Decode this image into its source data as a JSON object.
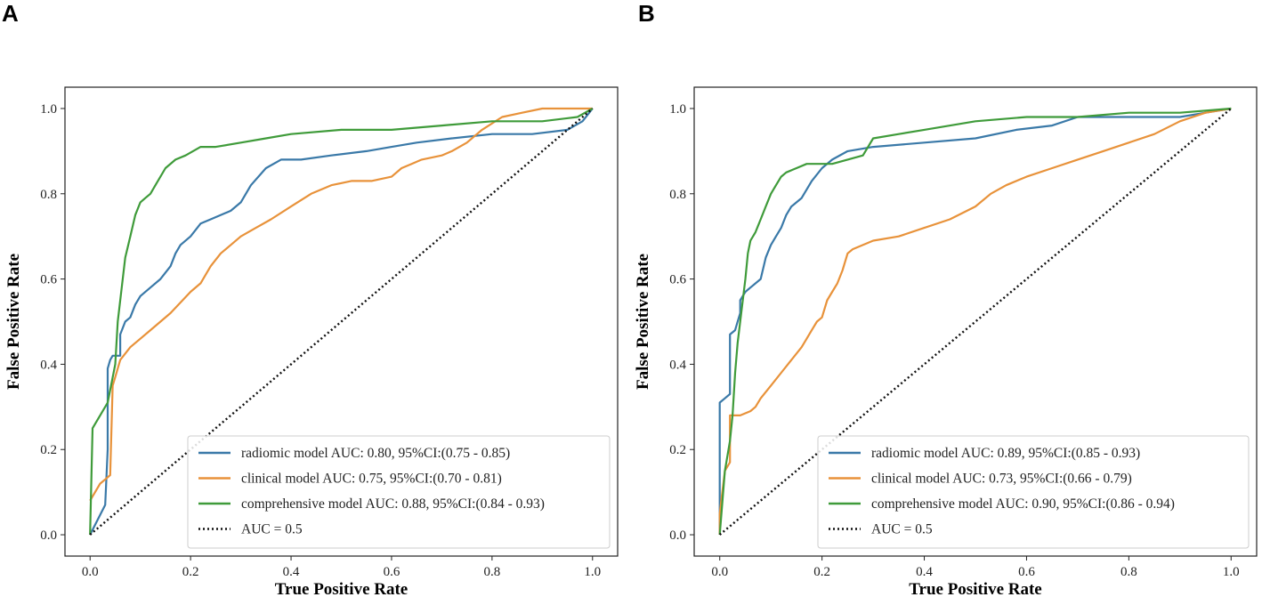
{
  "chart_data": [
    {
      "type": "line",
      "panel": "A",
      "xlabel": "True Positive Rate",
      "ylabel": "False Positive Rate",
      "xlim": [
        -0.05,
        1.05
      ],
      "ylim": [
        -0.05,
        1.05
      ],
      "xticks": [
        "0.0",
        "0.2",
        "0.4",
        "0.6",
        "0.8",
        "1.0"
      ],
      "yticks": [
        "0.0",
        "0.2",
        "0.4",
        "0.6",
        "0.8",
        "1.0"
      ],
      "legend_position": "lower-right",
      "series": [
        {
          "name": "radiomic model AUC: 0.80, 95%CI:(0.75 - 0.85)",
          "color": "#3a79a8",
          "style": "solid",
          "x": [
            0,
            0.03,
            0.035,
            0.035,
            0.04,
            0.045,
            0.06,
            0.06,
            0.07,
            0.08,
            0.09,
            0.1,
            0.12,
            0.14,
            0.16,
            0.17,
            0.18,
            0.2,
            0.22,
            0.24,
            0.28,
            0.3,
            0.32,
            0.35,
            0.38,
            0.42,
            0.48,
            0.55,
            0.6,
            0.65,
            0.72,
            0.8,
            0.88,
            0.95,
            0.98,
            1.0
          ],
          "y": [
            0,
            0.07,
            0.2,
            0.39,
            0.41,
            0.42,
            0.42,
            0.47,
            0.5,
            0.51,
            0.54,
            0.56,
            0.58,
            0.6,
            0.63,
            0.66,
            0.68,
            0.7,
            0.73,
            0.74,
            0.76,
            0.78,
            0.82,
            0.86,
            0.88,
            0.88,
            0.89,
            0.9,
            0.91,
            0.92,
            0.93,
            0.94,
            0.94,
            0.95,
            0.97,
            1.0
          ]
        },
        {
          "name": "clinical model AUC: 0.75, 95%CI:(0.70 - 0.81)",
          "color": "#e8923a",
          "style": "solid",
          "x": [
            0,
            0.01,
            0.02,
            0.03,
            0.04,
            0.045,
            0.05,
            0.06,
            0.08,
            0.1,
            0.12,
            0.14,
            0.16,
            0.2,
            0.22,
            0.24,
            0.26,
            0.28,
            0.3,
            0.33,
            0.36,
            0.4,
            0.44,
            0.48,
            0.52,
            0.56,
            0.6,
            0.62,
            0.64,
            0.66,
            0.7,
            0.72,
            0.75,
            0.78,
            0.82,
            0.86,
            0.9,
            0.95,
            1.0
          ],
          "y": [
            0.08,
            0.1,
            0.12,
            0.13,
            0.14,
            0.35,
            0.37,
            0.41,
            0.44,
            0.46,
            0.48,
            0.5,
            0.52,
            0.57,
            0.59,
            0.63,
            0.66,
            0.68,
            0.7,
            0.72,
            0.74,
            0.77,
            0.8,
            0.82,
            0.83,
            0.83,
            0.84,
            0.86,
            0.87,
            0.88,
            0.89,
            0.9,
            0.92,
            0.95,
            0.98,
            0.99,
            1.0,
            1.0,
            1.0
          ]
        },
        {
          "name": "comprehensive model AUC: 0.88, 95%CI:(0.84 - 0.93)",
          "color": "#3f9b3a",
          "style": "solid",
          "x": [
            0,
            0.005,
            0.02,
            0.035,
            0.05,
            0.055,
            0.06,
            0.07,
            0.08,
            0.09,
            0.1,
            0.11,
            0.12,
            0.13,
            0.15,
            0.17,
            0.19,
            0.22,
            0.25,
            0.3,
            0.35,
            0.4,
            0.5,
            0.6,
            0.7,
            0.8,
            0.9,
            0.97,
            1.0
          ],
          "y": [
            0,
            0.25,
            0.28,
            0.31,
            0.4,
            0.5,
            0.55,
            0.65,
            0.7,
            0.75,
            0.78,
            0.79,
            0.8,
            0.82,
            0.86,
            0.88,
            0.89,
            0.91,
            0.91,
            0.92,
            0.93,
            0.94,
            0.95,
            0.95,
            0.96,
            0.97,
            0.97,
            0.98,
            1.0
          ]
        },
        {
          "name": "AUC = 0.5",
          "color": "#111111",
          "style": "dotted",
          "x": [
            0,
            1
          ],
          "y": [
            0,
            1
          ]
        }
      ]
    },
    {
      "type": "line",
      "panel": "B",
      "xlabel": "True Positive Rate",
      "ylabel": "False Positive Rate",
      "xlim": [
        -0.05,
        1.05
      ],
      "ylim": [
        -0.05,
        1.05
      ],
      "xticks": [
        "0.0",
        "0.2",
        "0.4",
        "0.6",
        "0.8",
        "1.0"
      ],
      "yticks": [
        "0.0",
        "0.2",
        "0.4",
        "0.6",
        "0.8",
        "1.0"
      ],
      "legend_position": "lower-right",
      "series": [
        {
          "name": "radiomic model AUC: 0.89, 95%CI:(0.85 - 0.93)",
          "color": "#3a79a8",
          "style": "solid",
          "x": [
            0,
            0.0,
            0.01,
            0.02,
            0.02,
            0.03,
            0.035,
            0.04,
            0.04,
            0.05,
            0.06,
            0.08,
            0.09,
            0.1,
            0.11,
            0.12,
            0.13,
            0.14,
            0.16,
            0.18,
            0.2,
            0.22,
            0.25,
            0.3,
            0.4,
            0.5,
            0.58,
            0.65,
            0.7,
            0.8,
            0.9,
            0.95,
            1.0
          ],
          "y": [
            0,
            0.31,
            0.32,
            0.33,
            0.47,
            0.48,
            0.5,
            0.52,
            0.55,
            0.57,
            0.58,
            0.6,
            0.65,
            0.68,
            0.7,
            0.72,
            0.75,
            0.77,
            0.79,
            0.83,
            0.86,
            0.88,
            0.9,
            0.91,
            0.92,
            0.93,
            0.95,
            0.96,
            0.98,
            0.98,
            0.98,
            0.99,
            1.0
          ]
        },
        {
          "name": "clinical model AUC: 0.73, 95%CI:(0.66 - 0.79)",
          "color": "#e8923a",
          "style": "solid",
          "x": [
            0,
            0.0,
            0.01,
            0.02,
            0.02,
            0.04,
            0.06,
            0.07,
            0.08,
            0.1,
            0.12,
            0.14,
            0.16,
            0.17,
            0.18,
            0.19,
            0.2,
            0.21,
            0.22,
            0.23,
            0.24,
            0.25,
            0.26,
            0.3,
            0.35,
            0.4,
            0.45,
            0.5,
            0.53,
            0.56,
            0.6,
            0.65,
            0.7,
            0.75,
            0.8,
            0.85,
            0.9,
            0.95,
            1.0
          ],
          "y": [
            0,
            0.05,
            0.15,
            0.17,
            0.28,
            0.28,
            0.29,
            0.3,
            0.32,
            0.35,
            0.38,
            0.41,
            0.44,
            0.46,
            0.48,
            0.5,
            0.51,
            0.55,
            0.57,
            0.59,
            0.62,
            0.66,
            0.67,
            0.69,
            0.7,
            0.72,
            0.74,
            0.77,
            0.8,
            0.82,
            0.84,
            0.86,
            0.88,
            0.9,
            0.92,
            0.94,
            0.97,
            0.99,
            1.0
          ]
        },
        {
          "name": "comprehensive model AUC: 0.90, 95%CI:(0.86 - 0.94)",
          "color": "#3f9b3a",
          "style": "solid",
          "x": [
            0,
            0.01,
            0.02,
            0.025,
            0.03,
            0.035,
            0.04,
            0.05,
            0.055,
            0.06,
            0.07,
            0.08,
            0.09,
            0.1,
            0.11,
            0.12,
            0.13,
            0.15,
            0.17,
            0.19,
            0.22,
            0.25,
            0.28,
            0.3,
            0.35,
            0.4,
            0.5,
            0.6,
            0.7,
            0.8,
            0.9,
            1.0
          ],
          "y": [
            0,
            0.15,
            0.22,
            0.28,
            0.38,
            0.45,
            0.5,
            0.6,
            0.66,
            0.69,
            0.71,
            0.74,
            0.77,
            0.8,
            0.82,
            0.84,
            0.85,
            0.86,
            0.87,
            0.87,
            0.87,
            0.88,
            0.89,
            0.93,
            0.94,
            0.95,
            0.97,
            0.98,
            0.98,
            0.99,
            0.99,
            1.0
          ]
        },
        {
          "name": "AUC = 0.5",
          "color": "#111111",
          "style": "dotted",
          "x": [
            0,
            1
          ],
          "y": [
            0,
            1
          ]
        }
      ]
    }
  ]
}
